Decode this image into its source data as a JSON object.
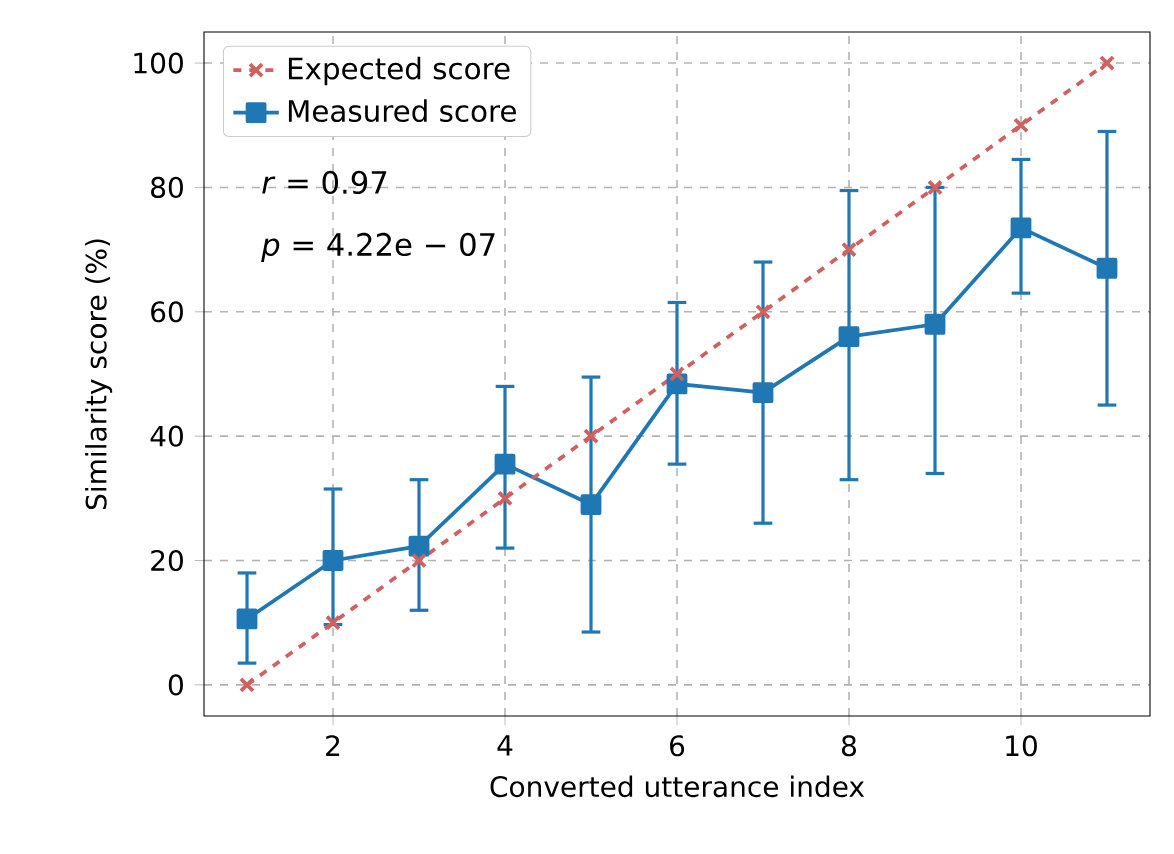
{
  "chart_data": {
    "type": "line",
    "xlabel": "Converted utterance index",
    "ylabel": "Similarity score (%)",
    "x": [
      1,
      2,
      3,
      4,
      5,
      6,
      7,
      8,
      9,
      10,
      11
    ],
    "series": [
      {
        "name": "Expected score",
        "color": "#d1605e",
        "marker": "cross",
        "line_style": "dashed",
        "values": [
          0,
          10,
          20,
          30,
          40,
          50,
          60,
          70,
          80,
          90,
          100
        ]
      },
      {
        "name": "Measured score",
        "color": "#1f77b4",
        "marker": "square",
        "line_style": "solid",
        "values": [
          10.6,
          20,
          22.3,
          35.5,
          29,
          48.4,
          47,
          56,
          58,
          73.5,
          67
        ],
        "errors": [
          [
            3.5,
            18
          ],
          [
            9.7,
            31.5
          ],
          [
            12,
            33
          ],
          [
            22,
            48
          ],
          [
            8.5,
            49.5
          ],
          [
            35.5,
            61.5
          ],
          [
            26,
            68
          ],
          [
            33,
            79.5
          ],
          [
            34,
            80
          ],
          [
            63,
            84.5
          ],
          [
            45,
            89
          ]
        ]
      }
    ],
    "annotations": [
      "*r* = 0.97",
      "*p* = 4.22e − 07"
    ],
    "xlim": [
      0.5,
      11.5
    ],
    "ylim": [
      -5,
      105
    ],
    "xticks": [
      2,
      4,
      6,
      8,
      10
    ],
    "yticks": [
      0,
      20,
      40,
      60,
      80,
      100
    ],
    "grid": true,
    "legend": "top left"
  }
}
